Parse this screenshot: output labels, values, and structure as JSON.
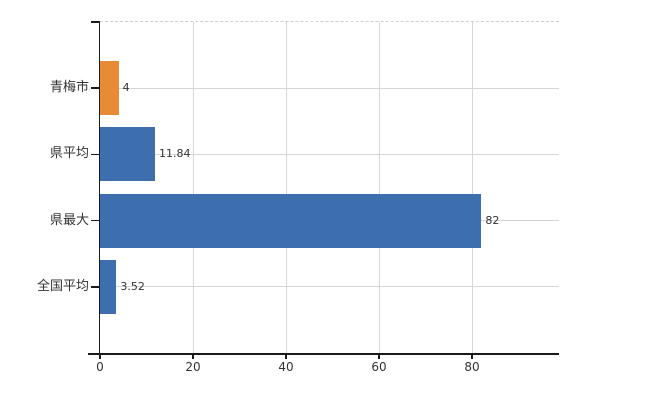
{
  "chart_data": {
    "type": "bar",
    "orientation": "horizontal",
    "title": "",
    "xlabel": "",
    "ylabel": "",
    "categories": [
      "青梅市",
      "県平均",
      "県最大",
      "全国平均"
    ],
    "values": [
      4,
      11.84,
      82,
      3.52
    ],
    "value_labels": [
      "4",
      "11.84",
      "82",
      "3.52"
    ],
    "bar_colors": [
      "#e88b36",
      "#3d6eae",
      "#3d6eae",
      "#3d6eae"
    ],
    "xticks": [
      0,
      20,
      40,
      60,
      80
    ],
    "xtick_labels": [
      "0",
      "20",
      "40",
      "60",
      "80"
    ],
    "xlim": [
      0,
      98.7
    ],
    "grid": true,
    "legend": false,
    "colors": {
      "highlight": "#e88b36",
      "series": "#3d6eae",
      "gridline": "#d6d6d6",
      "plot_top_border": "#cfcfcf",
      "axis": "#1a1a1a",
      "text": "#333333",
      "background": "#ffffff"
    }
  }
}
